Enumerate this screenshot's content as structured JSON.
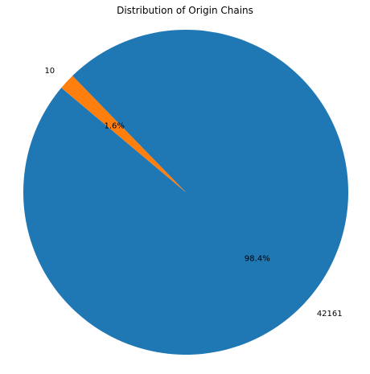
{
  "chart_data": {
    "type": "pie",
    "title": "Distribution of Origin Chains",
    "start_angle_deg": 140,
    "direction": "counterclockwise",
    "slices": [
      {
        "label": "42161",
        "percent_label": "98.4%",
        "value": 98.4,
        "color": "#1f77b4"
      },
      {
        "label": "10",
        "percent_label": "1.6%",
        "value": 1.6,
        "color": "#ff7f0e"
      }
    ]
  }
}
